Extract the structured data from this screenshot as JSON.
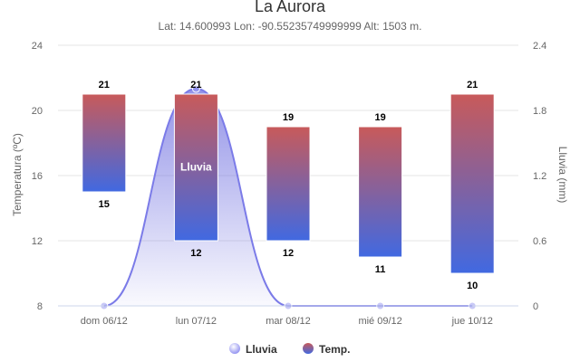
{
  "chart_data": {
    "type": "columnrange+area",
    "title": "La Aurora",
    "subtitle": "Lat: 14.600993 Lon: -90.55235749999999 Alt: 1503 m.",
    "categories": [
      "dom 06/12",
      "lun 07/12",
      "mar 08/12",
      "mié 09/12",
      "jue 10/12"
    ],
    "y_left": {
      "label": "Temperatura (ºC)",
      "range": [
        8,
        24
      ],
      "ticks": [
        "8",
        "12",
        "16",
        "20",
        "24"
      ]
    },
    "y_right": {
      "label": "Lluvia (mm)",
      "range": [
        0,
        2.4
      ],
      "ticks": [
        "0",
        "0.6",
        "1.2",
        "1.8",
        "2.4"
      ]
    },
    "grid": true,
    "legend_position": "bottom-center",
    "series": [
      {
        "name": "Lluvia",
        "type": "area",
        "axis": "right",
        "values": [
          0,
          2.0,
          0,
          0,
          0
        ]
      },
      {
        "name": "Temp.",
        "type": "columnrange",
        "axis": "left",
        "low": [
          15,
          12,
          12,
          11,
          10
        ],
        "high": [
          21,
          21,
          19,
          19,
          21
        ]
      }
    ],
    "annotation": "Lluvia",
    "colors": {
      "temp_top": "#c85a5a",
      "temp_bottom": "#4169e1",
      "rain_stroke": "#7b7be8",
      "rain_fill": "#6f6fe0",
      "grid": "#e6e6e6",
      "axis": "#ccd6eb"
    }
  }
}
